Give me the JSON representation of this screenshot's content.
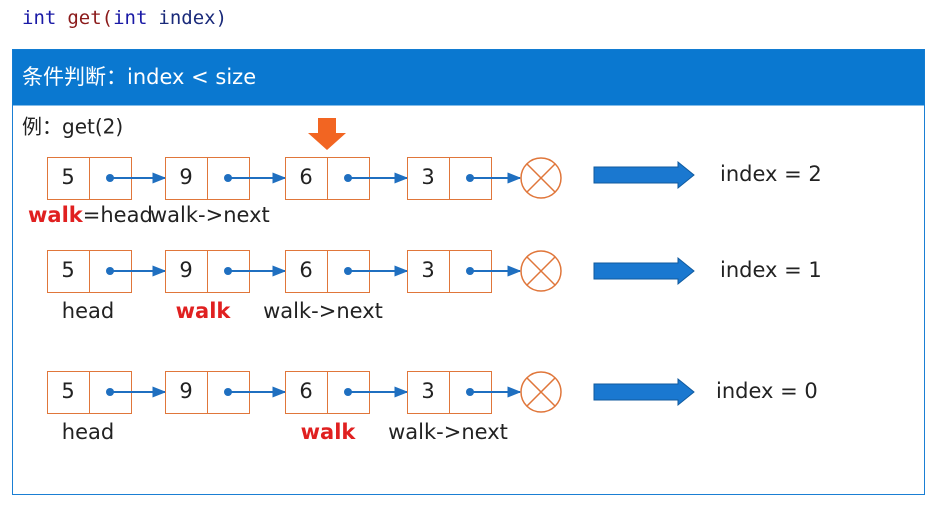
{
  "code": {
    "type1": "int",
    "func": "get(",
    "type2": "int",
    "param": "index)"
  },
  "header": {
    "title": "条件判断：index < size"
  },
  "example": "例：get(2)",
  "rows": [
    {
      "nodes": [
        5,
        9,
        6,
        3
      ],
      "index": "index = 2",
      "labels": {
        "walk": "walk",
        "head": "=head",
        "next": "walk->next"
      }
    },
    {
      "nodes": [
        5,
        9,
        6,
        3
      ],
      "index": "index = 1",
      "labels": {
        "head": "head",
        "walk": "walk",
        "next": "walk->next"
      }
    },
    {
      "nodes": [
        5,
        9,
        6,
        3
      ],
      "index": "index = 0",
      "labels": {
        "head": "head",
        "walk": "walk",
        "next": "walk->next"
      }
    }
  ]
}
